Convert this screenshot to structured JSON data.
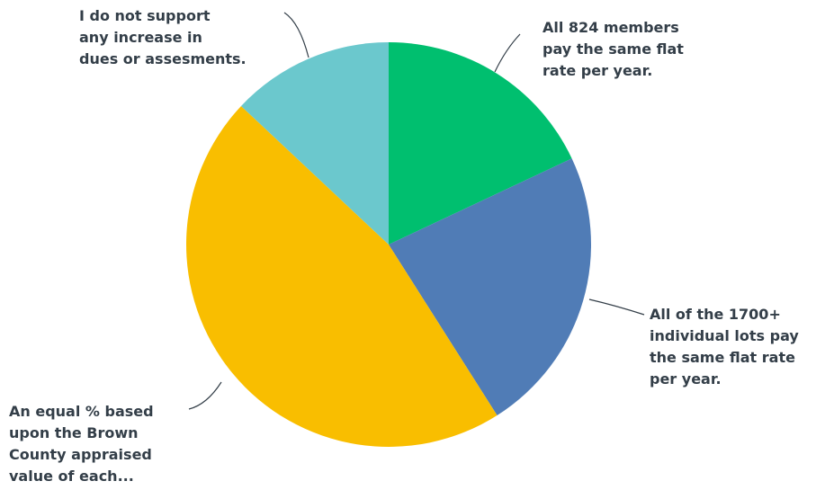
{
  "chart_data": {
    "type": "pie",
    "title": "",
    "series": [
      {
        "values": [
          18,
          23,
          46,
          13
        ],
        "labels": [
          [
            "All 824 members",
            "pay the same flat",
            "rate per year."
          ],
          [
            "All of the 1700+",
            "individual lots pay",
            "the same flat rate",
            "per year."
          ],
          [
            "An equal % based",
            "upon the Brown",
            "County appraised",
            "value of each..."
          ],
          [
            "I do not support",
            "any increase in",
            "dues or assesments."
          ]
        ],
        "colors": [
          "#00bf6f",
          "#507cb6",
          "#f9be00",
          "#6bc8cd"
        ]
      }
    ],
    "start_angle": "12 o'clock",
    "direction": "clockwise",
    "legend": "none"
  }
}
